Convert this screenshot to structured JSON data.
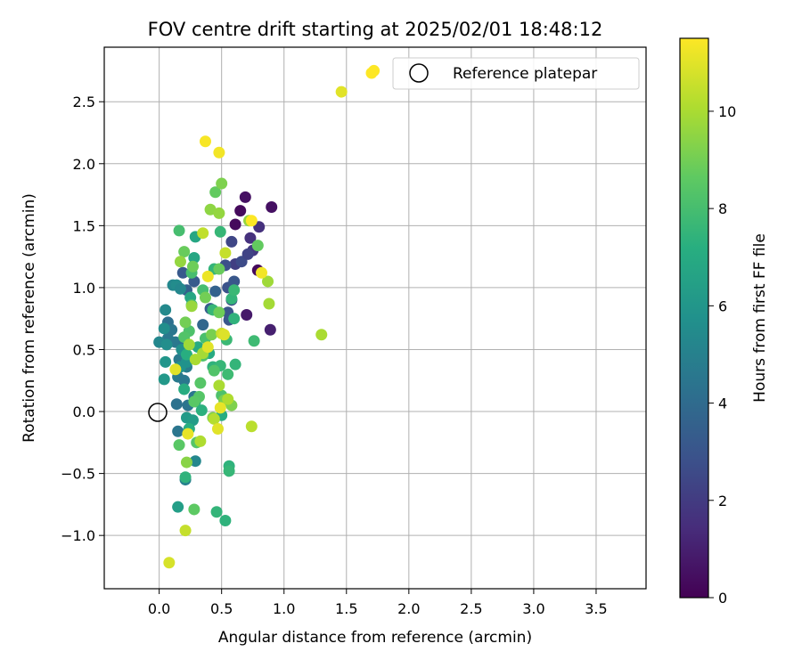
{
  "chart_data": {
    "type": "scatter",
    "title": "FOV centre drift starting at 2025/02/01 18:48:12",
    "xlabel": "Angular distance from reference (arcmin)",
    "ylabel": "Rotation from reference (arcmin)",
    "xlim": [
      -0.44,
      3.9
    ],
    "ylim": [
      -1.43,
      2.94
    ],
    "xticks": [
      "0.0",
      "0.5",
      "1.0",
      "1.5",
      "2.0",
      "2.5",
      "3.0",
      "3.5"
    ],
    "xtick_values": [
      0,
      0.5,
      1,
      1.5,
      2,
      2.5,
      3,
      3.5
    ],
    "yticks": [
      "−1.0",
      "−0.5",
      "0.0",
      "0.5",
      "1.0",
      "1.5",
      "2.0",
      "2.5"
    ],
    "ytick_values": [
      -1,
      -0.5,
      0,
      0.5,
      1,
      1.5,
      2,
      2.5
    ],
    "grid": true,
    "legend": {
      "placement": "top-right",
      "entries": [
        "Reference platepar"
      ]
    },
    "reference_point": {
      "x": 0,
      "y": 0,
      "label": "Reference platepar"
    },
    "colorbar": {
      "label": "Hours from first FF file",
      "min": 0,
      "max": 11.5,
      "ticks": [
        "0",
        "2",
        "4",
        "6",
        "8",
        "10"
      ],
      "tick_values": [
        0,
        2,
        4,
        6,
        8,
        10
      ],
      "colormap": "viridis"
    },
    "points": [
      {
        "x": 0.9,
        "y": 1.65,
        "h": 0.5
      },
      {
        "x": 0.69,
        "y": 1.73,
        "h": 0.5
      },
      {
        "x": 0.65,
        "y": 1.62,
        "h": 0.3
      },
      {
        "x": 0.61,
        "y": 1.51,
        "h": 0.3
      },
      {
        "x": 0.79,
        "y": 1.14,
        "h": 0.3
      },
      {
        "x": 0.7,
        "y": 0.78,
        "h": 0.8
      },
      {
        "x": 0.89,
        "y": 0.66,
        "h": 1.0
      },
      {
        "x": 0.8,
        "y": 1.49,
        "h": 1.6
      },
      {
        "x": 0.73,
        "y": 1.4,
        "h": 1.6
      },
      {
        "x": 0.75,
        "y": 1.3,
        "h": 1.9
      },
      {
        "x": 0.61,
        "y": 1.19,
        "h": 2.1
      },
      {
        "x": 0.58,
        "y": 1.37,
        "h": 2.4
      },
      {
        "x": 0.66,
        "y": 1.21,
        "h": 2.6
      },
      {
        "x": 0.71,
        "y": 1.27,
        "h": 2.3
      },
      {
        "x": 0.53,
        "y": 1.18,
        "h": 2.8
      },
      {
        "x": 0.55,
        "y": 1.0,
        "h": 2.9
      },
      {
        "x": 0.6,
        "y": 1.05,
        "h": 3.1
      },
      {
        "x": 0.58,
        "y": 0.9,
        "h": 2.7
      },
      {
        "x": 0.55,
        "y": 0.8,
        "h": 3.0
      },
      {
        "x": 0.56,
        "y": 0.74,
        "h": 3.1
      },
      {
        "x": 0.19,
        "y": 1.12,
        "h": 3.2
      },
      {
        "x": 0.28,
        "y": 1.05,
        "h": 3.3
      },
      {
        "x": 0.22,
        "y": 0.98,
        "h": 3.5
      },
      {
        "x": 0.45,
        "y": 0.97,
        "h": 3.6
      },
      {
        "x": 0.41,
        "y": 0.83,
        "h": 3.4
      },
      {
        "x": 0.35,
        "y": 0.7,
        "h": 3.8
      },
      {
        "x": 0.07,
        "y": 0.72,
        "h": 4.2
      },
      {
        "x": 0.1,
        "y": 0.66,
        "h": 4.5
      },
      {
        "x": 0.07,
        "y": 0.59,
        "h": 4.6
      },
      {
        "x": 0.13,
        "y": 0.56,
        "h": 4.6
      },
      {
        "x": 0.2,
        "y": 0.55,
        "h": 4.4
      },
      {
        "x": 0.16,
        "y": 0.42,
        "h": 4.7
      },
      {
        "x": 0.22,
        "y": 0.36,
        "h": 4.8
      },
      {
        "x": 0.15,
        "y": 0.28,
        "h": 4.7
      },
      {
        "x": 0.2,
        "y": 0.25,
        "h": 4.6
      },
      {
        "x": 0.28,
        "y": 0.12,
        "h": 4.5
      },
      {
        "x": 0.14,
        "y": 0.06,
        "h": 4.3
      },
      {
        "x": 0.23,
        "y": 0.05,
        "h": 4.4
      },
      {
        "x": 0.15,
        "y": -0.16,
        "h": 4.5
      },
      {
        "x": 0.24,
        "y": -0.14,
        "h": 4.9
      },
      {
        "x": 0.21,
        "y": -0.55,
        "h": 5.0
      },
      {
        "x": 0.29,
        "y": -0.4,
        "h": 5.3
      },
      {
        "x": 0.11,
        "y": 1.02,
        "h": 5.3
      },
      {
        "x": 0.14,
        "y": 1.02,
        "h": 5.5
      },
      {
        "x": 0.17,
        "y": 0.99,
        "h": 5.3
      },
      {
        "x": 0.05,
        "y": 0.82,
        "h": 5.4
      },
      {
        "x": 0.04,
        "y": 0.67,
        "h": 5.6
      },
      {
        "x": 0.0,
        "y": 0.56,
        "h": 5.3
      },
      {
        "x": 0.06,
        "y": 0.54,
        "h": 5.6
      },
      {
        "x": 0.18,
        "y": 0.5,
        "h": 5.7
      },
      {
        "x": 0.22,
        "y": 0.4,
        "h": 5.8
      },
      {
        "x": 0.17,
        "y": 0.36,
        "h": 5.8
      },
      {
        "x": 0.05,
        "y": 0.4,
        "h": 6.0
      },
      {
        "x": 0.04,
        "y": 0.26,
        "h": 6.1
      },
      {
        "x": 0.22,
        "y": -0.05,
        "h": 6.2
      },
      {
        "x": 0.27,
        "y": -0.07,
        "h": 6.3
      },
      {
        "x": 0.15,
        "y": -0.77,
        "h": 6.4
      },
      {
        "x": 0.29,
        "y": 1.41,
        "h": 6.8
      },
      {
        "x": 0.28,
        "y": 1.24,
        "h": 6.8
      },
      {
        "x": 0.25,
        "y": 0.92,
        "h": 6.8
      },
      {
        "x": 0.31,
        "y": 0.52,
        "h": 7.0
      },
      {
        "x": 0.22,
        "y": 0.46,
        "h": 7.2
      },
      {
        "x": 0.4,
        "y": 0.47,
        "h": 7.0
      },
      {
        "x": 0.43,
        "y": 0.36,
        "h": 7.4
      },
      {
        "x": 0.2,
        "y": 0.18,
        "h": 7.1
      },
      {
        "x": 0.29,
        "y": 0.08,
        "h": 7.3
      },
      {
        "x": 0.34,
        "y": 0.01,
        "h": 7.3
      },
      {
        "x": 0.24,
        "y": -0.14,
        "h": 7.2
      },
      {
        "x": 0.5,
        "y": -0.03,
        "h": 7.1
      },
      {
        "x": 0.53,
        "y": -0.88,
        "h": 7.4
      },
      {
        "x": 0.46,
        "y": -0.81,
        "h": 7.5
      },
      {
        "x": 0.56,
        "y": -0.44,
        "h": 7.4
      },
      {
        "x": 0.56,
        "y": -0.48,
        "h": 7.6
      },
      {
        "x": 0.21,
        "y": -0.53,
        "h": 7.4
      },
      {
        "x": 0.44,
        "y": 1.15,
        "h": 7.5
      },
      {
        "x": 0.49,
        "y": 1.45,
        "h": 7.6
      },
      {
        "x": 0.43,
        "y": 0.82,
        "h": 7.6
      },
      {
        "x": 0.6,
        "y": 0.75,
        "h": 7.4
      },
      {
        "x": 0.58,
        "y": 0.91,
        "h": 7.5
      },
      {
        "x": 0.6,
        "y": 0.98,
        "h": 7.7
      },
      {
        "x": 0.54,
        "y": 0.58,
        "h": 7.7
      },
      {
        "x": 0.61,
        "y": 0.38,
        "h": 7.5
      },
      {
        "x": 0.49,
        "y": 0.37,
        "h": 7.6
      },
      {
        "x": 0.55,
        "y": 0.3,
        "h": 7.8
      },
      {
        "x": 0.76,
        "y": 0.57,
        "h": 7.8
      },
      {
        "x": 0.16,
        "y": 1.46,
        "h": 8.0
      },
      {
        "x": 0.26,
        "y": 1.12,
        "h": 8.0
      },
      {
        "x": 0.26,
        "y": 0.86,
        "h": 7.9
      },
      {
        "x": 0.35,
        "y": 0.98,
        "h": 8.0
      },
      {
        "x": 0.24,
        "y": 0.65,
        "h": 8.2
      },
      {
        "x": 0.37,
        "y": 0.59,
        "h": 8.1
      },
      {
        "x": 0.2,
        "y": 0.6,
        "h": 8.3
      },
      {
        "x": 0.35,
        "y": 0.45,
        "h": 8.2
      },
      {
        "x": 0.44,
        "y": 0.33,
        "h": 8.3
      },
      {
        "x": 0.33,
        "y": 0.23,
        "h": 8.4
      },
      {
        "x": 0.32,
        "y": 0.12,
        "h": 8.4
      },
      {
        "x": 0.28,
        "y": 0.08,
        "h": 8.5
      },
      {
        "x": 0.5,
        "y": 0.13,
        "h": 8.2
      },
      {
        "x": 0.3,
        "y": -0.25,
        "h": 8.4
      },
      {
        "x": 0.16,
        "y": -0.27,
        "h": 8.5
      },
      {
        "x": 0.28,
        "y": -0.79,
        "h": 8.6
      },
      {
        "x": 0.45,
        "y": 1.77,
        "h": 8.7
      },
      {
        "x": 0.79,
        "y": 1.34,
        "h": 8.7
      },
      {
        "x": 0.2,
        "y": 1.29,
        "h": 8.8
      },
      {
        "x": 0.27,
        "y": 1.17,
        "h": 8.9
      },
      {
        "x": 0.48,
        "y": 1.15,
        "h": 8.8
      },
      {
        "x": 0.37,
        "y": 0.92,
        "h": 9.0
      },
      {
        "x": 0.48,
        "y": 0.8,
        "h": 8.9
      },
      {
        "x": 0.21,
        "y": 0.72,
        "h": 9.0
      },
      {
        "x": 0.42,
        "y": 0.62,
        "h": 9.1
      },
      {
        "x": 0.52,
        "y": 0.09,
        "h": 9.1
      },
      {
        "x": 0.58,
        "y": 0.05,
        "h": 9.2
      },
      {
        "x": 0.43,
        "y": -0.05,
        "h": 9.3
      },
      {
        "x": 0.22,
        "y": -0.41,
        "h": 9.4
      },
      {
        "x": 0.5,
        "y": 1.84,
        "h": 9.2
      },
      {
        "x": 0.41,
        "y": 1.63,
        "h": 9.5
      },
      {
        "x": 0.48,
        "y": 1.6,
        "h": 9.6
      },
      {
        "x": 0.72,
        "y": 1.54,
        "h": 9.6
      },
      {
        "x": 0.17,
        "y": 1.21,
        "h": 9.6
      },
      {
        "x": 0.26,
        "y": 0.85,
        "h": 9.7
      },
      {
        "x": 0.87,
        "y": 1.05,
        "h": 9.8
      },
      {
        "x": 0.88,
        "y": 0.87,
        "h": 9.9
      },
      {
        "x": 0.24,
        "y": 0.54,
        "h": 9.8
      },
      {
        "x": 0.35,
        "y": 0.47,
        "h": 9.9
      },
      {
        "x": 0.29,
        "y": 0.42,
        "h": 10.0
      },
      {
        "x": 0.48,
        "y": 0.21,
        "h": 10.0
      },
      {
        "x": 0.55,
        "y": 0.1,
        "h": 10.1
      },
      {
        "x": 0.44,
        "y": -0.06,
        "h": 10.2
      },
      {
        "x": 0.33,
        "y": -0.24,
        "h": 10.1
      },
      {
        "x": 0.74,
        "y": -0.12,
        "h": 10.3
      },
      {
        "x": 1.3,
        "y": 0.62,
        "h": 10.0
      },
      {
        "x": 0.35,
        "y": 1.44,
        "h": 10.4
      },
      {
        "x": 0.53,
        "y": 1.28,
        "h": 10.5
      },
      {
        "x": 0.5,
        "y": 0.63,
        "h": 10.6
      },
      {
        "x": 0.21,
        "y": -0.96,
        "h": 10.5
      },
      {
        "x": 0.08,
        "y": -1.22,
        "h": 10.8
      },
      {
        "x": 0.52,
        "y": 0.62,
        "h": 10.9
      },
      {
        "x": 0.39,
        "y": 0.52,
        "h": 11.0
      },
      {
        "x": 0.13,
        "y": 0.34,
        "h": 11.0
      },
      {
        "x": 0.49,
        "y": 0.03,
        "h": 11.1
      },
      {
        "x": 0.47,
        "y": -0.14,
        "h": 11.0
      },
      {
        "x": 0.23,
        "y": -0.18,
        "h": 11.1
      },
      {
        "x": 0.39,
        "y": 1.09,
        "h": 11.2
      },
      {
        "x": 0.82,
        "y": 1.12,
        "h": 11.3
      },
      {
        "x": 0.48,
        "y": 2.09,
        "h": 11.3
      },
      {
        "x": 0.37,
        "y": 2.18,
        "h": 11.4
      },
      {
        "x": 0.74,
        "y": 1.54,
        "h": 11.5
      },
      {
        "x": 1.46,
        "y": 2.58,
        "h": 11.0
      },
      {
        "x": 1.72,
        "y": 2.75,
        "h": 11.5
      }
    ]
  }
}
